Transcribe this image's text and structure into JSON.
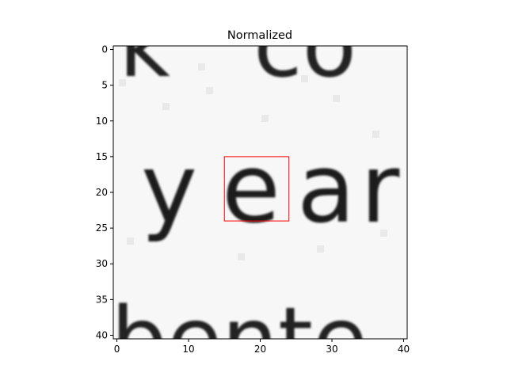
{
  "chart_data": {
    "type": "heatmap",
    "title": "Normalized",
    "xlabel": "",
    "ylabel": "",
    "colormap": "gray",
    "grid": false,
    "legend": "none",
    "xlim": [
      -0.5,
      40.5
    ],
    "ylim": [
      40.5,
      -0.5
    ],
    "xticks": [
      0,
      10,
      20,
      30,
      40
    ],
    "yticks": [
      0,
      5,
      10,
      15,
      20,
      25,
      30,
      35,
      40
    ],
    "image_content": "yea",
    "annotations": [
      {
        "shape": "rectangle",
        "x": 15,
        "y": 15,
        "width": 9,
        "height": 9,
        "color": "#ff0000"
      }
    ]
  }
}
